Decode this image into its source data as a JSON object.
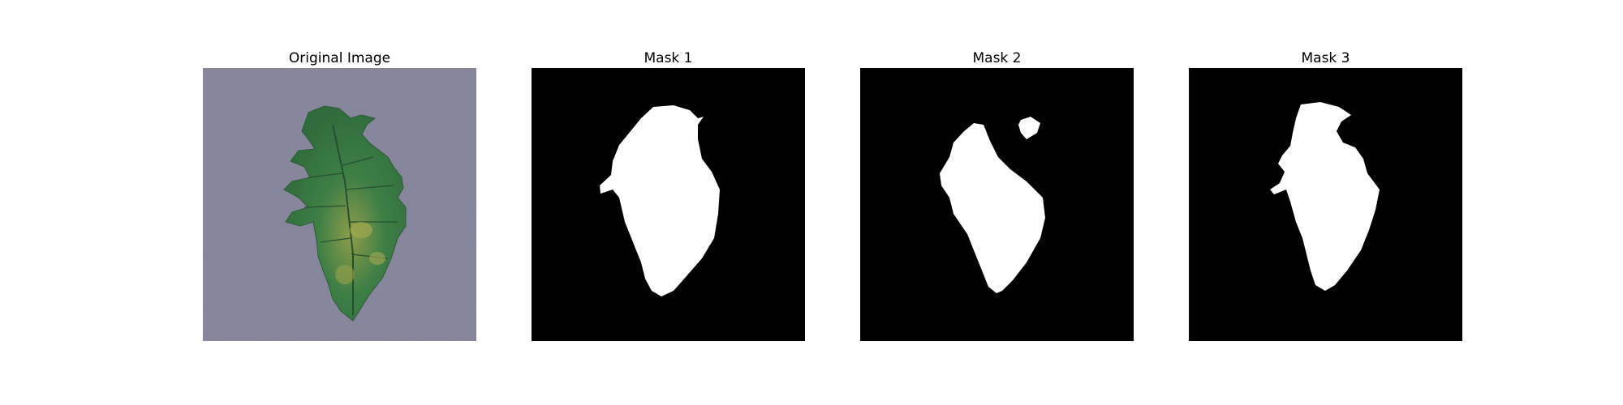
{
  "figure": {
    "panels": [
      {
        "title": "Original Image",
        "kind": "photo"
      },
      {
        "title": "Mask 1",
        "kind": "mask"
      },
      {
        "title": "Mask 2",
        "kind": "mask"
      },
      {
        "title": "Mask 3",
        "kind": "mask"
      }
    ],
    "colors": {
      "background": "#ffffff",
      "mask_background": "#000000",
      "mask_foreground": "#ffffff",
      "photo_background": "#8c8aa0",
      "leaf_dark": "#2f6b3c",
      "leaf_mid": "#3f7f46",
      "leaf_light": "#8e9c4a"
    }
  }
}
